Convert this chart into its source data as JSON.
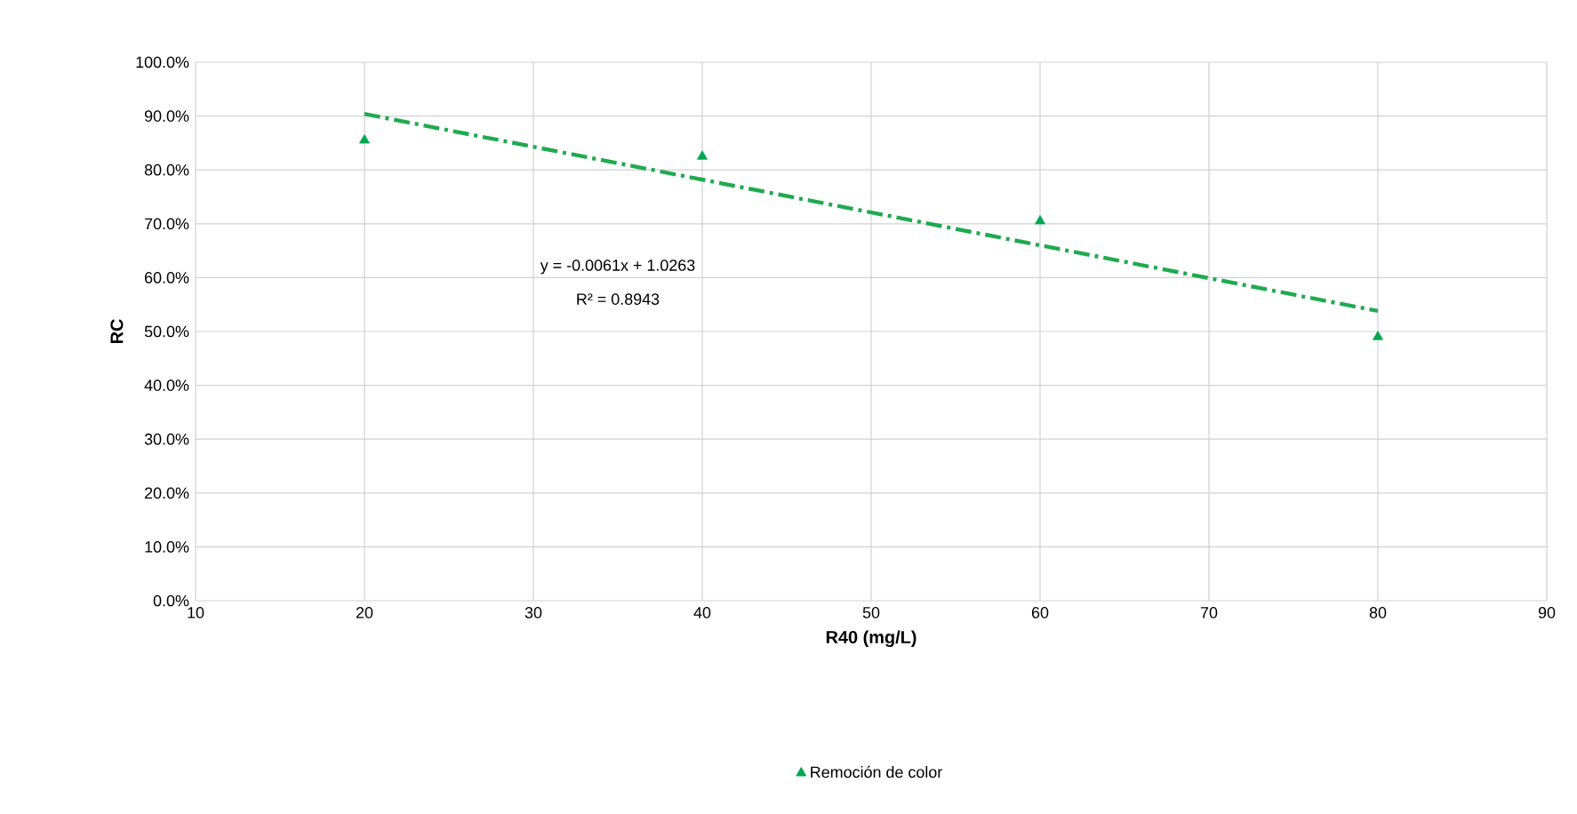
{
  "chart_data": {
    "type": "scatter",
    "xlabel": "R40 (mg/L)",
    "ylabel": "RC",
    "series": [
      {
        "name": "Remoción de color",
        "color": "#00a651",
        "marker": "triangle",
        "x": [
          20,
          40,
          60,
          80
        ],
        "values": [
          85.5,
          82.5,
          70.5,
          49.0
        ]
      },
      {
        "type": "line",
        "color": "#1faa50",
        "line_style": "dashed",
        "marker": "none",
        "x": [
          20,
          80
        ],
        "values": [
          90.4,
          53.8
        ]
      }
    ],
    "xlim": [
      10,
      90
    ],
    "xticks": [
      10,
      20,
      30,
      40,
      50,
      60,
      70,
      80,
      90
    ],
    "ylim": [
      0,
      100
    ],
    "yticks": [
      {
        "value": 0,
        "label": "0.0%"
      },
      {
        "value": 10,
        "label": "10.0%"
      },
      {
        "value": 20,
        "label": "20.0%"
      },
      {
        "value": 30,
        "label": "30.0%"
      },
      {
        "value": 40,
        "label": "40.0%"
      },
      {
        "value": 50,
        "label": "50.0%"
      },
      {
        "value": 60,
        "label": "60.0%"
      },
      {
        "value": 70,
        "label": "70.0%"
      },
      {
        "value": 80,
        "label": "80.0%"
      },
      {
        "value": 90,
        "label": "90.0%"
      },
      {
        "value": 100,
        "label": "100.0%"
      }
    ],
    "annotations": [
      "y = -0.0061x + 1.0263",
      "R² = 0.8943"
    ],
    "grid": true,
    "legend": "bottom"
  }
}
